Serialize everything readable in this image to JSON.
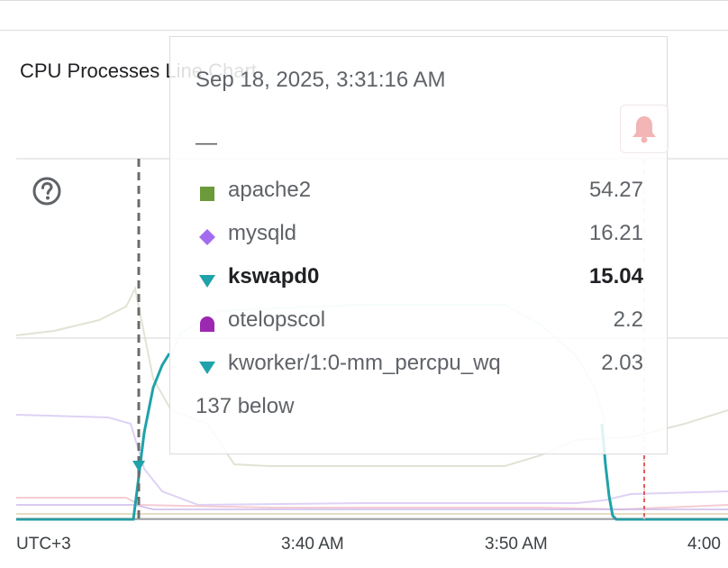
{
  "chart_title": "CPU Processes Line Chart",
  "tooltip": {
    "timestamp": "Sep 18, 2025, 3:31:16 AM",
    "dash": "—",
    "rows": [
      {
        "name": "apache2",
        "value": "54.27",
        "marker": "square",
        "color": "#6a9a3a"
      },
      {
        "name": "mysqld",
        "value": "16.21",
        "marker": "diamond",
        "color": "#a36cf0"
      },
      {
        "name": "kswapd0",
        "value": "15.04",
        "marker": "triangle",
        "color": "#1fa2a9",
        "highlighted": true
      },
      {
        "name": "otelopscol",
        "value": "2.2",
        "marker": "dome",
        "color": "#9c27b0"
      },
      {
        "name": "kworker/1:0-mm_percpu_wq",
        "value": "2.03",
        "marker": "triangle",
        "color": "#1fa2a9"
      }
    ],
    "more_label": "137 below"
  },
  "x_axis": {
    "timezone_label": "UTC+3",
    "ticks": [
      "3:40 AM",
      "3:50 AM",
      "4:00"
    ]
  },
  "icons": {
    "help": "help-circle-icon",
    "bell": "bell-icon"
  },
  "chart_data": {
    "type": "line",
    "title": "CPU Processes Line Chart",
    "xlabel": "",
    "ylabel": "",
    "x_ticks": [
      "3:40 AM",
      "3:50 AM",
      "4:00"
    ],
    "hover_time": "3:31:16 AM",
    "series": [
      {
        "name": "apache2",
        "color": "#6a9a3a",
        "value_at_hover": 54.27
      },
      {
        "name": "mysqld",
        "color": "#a36cf0",
        "value_at_hover": 16.21
      },
      {
        "name": "kswapd0",
        "color": "#1fa2a9",
        "value_at_hover": 15.04
      },
      {
        "name": "otelopscol",
        "color": "#9c27b0",
        "value_at_hover": 2.2
      },
      {
        "name": "kworker/1:0-mm_percpu_wq",
        "color": "#1fa2a9",
        "value_at_hover": 2.03
      }
    ],
    "grid": true
  }
}
